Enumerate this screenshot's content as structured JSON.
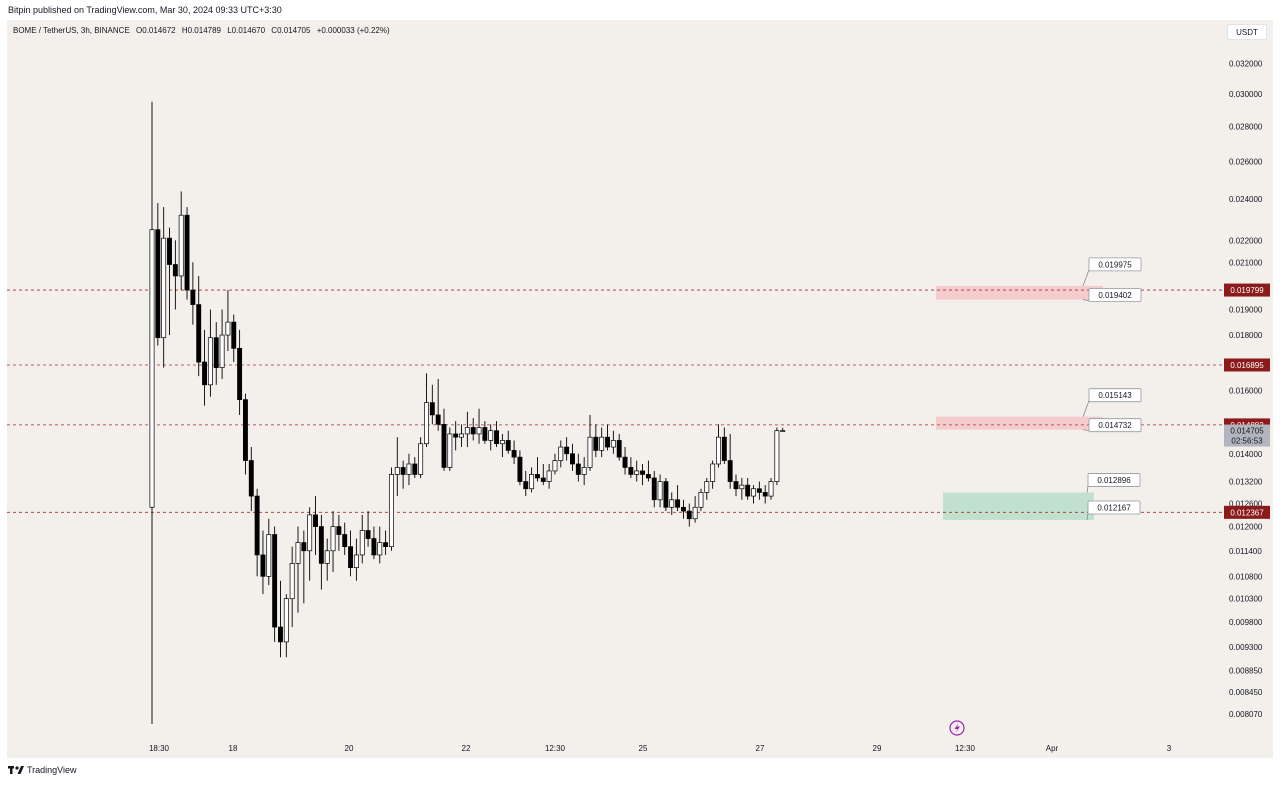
{
  "header": {
    "published": "Bitpin published on TradingView.com, Mar 30, 2024 09:33 UTC+3:30"
  },
  "symbol": {
    "name": "BOME / TetherUS, 3h, BINANCE",
    "open": "O0.014672",
    "high": "H0.014789",
    "low": "L0.014670",
    "close": "C0.014705",
    "change": "+0.000033 (+0.22%)"
  },
  "currency": "USDT",
  "footer": {
    "brand": "TradingView"
  },
  "colors": {
    "background": "#f3f0ec",
    "candle_up": "#ffffff",
    "candle_down": "#000000",
    "level_line": "#b22833",
    "level_badge": "#8b1a1a",
    "resistance_zone": "#f5c6c9",
    "support_zone": "#b7ddc8"
  },
  "chart_data": {
    "type": "candlestick",
    "y_scale": "log",
    "ylim": [
      0.0079,
      0.0325
    ],
    "y_ticks": [
      "0.032000",
      "0.030000",
      "0.028000",
      "0.026000",
      "0.024000",
      "0.022000",
      "0.021000",
      "0.019000",
      "0.018000",
      "0.016000",
      "0.014000",
      "0.013200",
      "0.012600",
      "0.012000",
      "0.011400",
      "0.010800",
      "0.010300",
      "0.009800",
      "0.009300",
      "0.008850",
      "0.008450",
      "0.008070"
    ],
    "x_ticks": [
      "18:30",
      "18",
      "20",
      "22",
      "12:30",
      "25",
      "27",
      "29",
      "12:30",
      "Apr",
      "3"
    ],
    "last_price": {
      "value": "0.014705",
      "countdown": "02:56:53"
    },
    "levels": [
      "0.019799",
      "0.016895",
      "0.014882",
      "0.012367"
    ],
    "zones": [
      {
        "kind": "resistance",
        "top": 0.019975,
        "bottom": 0.019402,
        "labels": [
          "0.019975",
          "0.019402"
        ]
      },
      {
        "kind": "resistance",
        "top": 0.015143,
        "bottom": 0.014732,
        "labels": [
          "0.015143",
          "0.014732"
        ]
      },
      {
        "kind": "support",
        "top": 0.012896,
        "bottom": 0.012167,
        "labels": [
          "0.012896",
          "0.012167"
        ]
      }
    ],
    "candles": [
      [
        0.0125,
        0.0295,
        0.0079,
        0.0225
      ],
      [
        0.0225,
        0.0238,
        0.0176,
        0.0179
      ],
      [
        0.0179,
        0.0236,
        0.0168,
        0.0221
      ],
      [
        0.0221,
        0.0226,
        0.018,
        0.0209
      ],
      [
        0.0209,
        0.022,
        0.019,
        0.0204
      ],
      [
        0.0204,
        0.0244,
        0.0198,
        0.0232
      ],
      [
        0.0232,
        0.0236,
        0.0194,
        0.0198
      ],
      [
        0.0198,
        0.021,
        0.0184,
        0.0192
      ],
      [
        0.0192,
        0.0204,
        0.0165,
        0.017
      ],
      [
        0.017,
        0.0182,
        0.0155,
        0.0162
      ],
      [
        0.0162,
        0.019,
        0.0158,
        0.0179
      ],
      [
        0.0179,
        0.0185,
        0.0162,
        0.0168
      ],
      [
        0.0168,
        0.019,
        0.0164,
        0.018
      ],
      [
        0.018,
        0.0198,
        0.0174,
        0.0185
      ],
      [
        0.0185,
        0.0188,
        0.017,
        0.0175
      ],
      [
        0.0175,
        0.0182,
        0.0152,
        0.0157
      ],
      [
        0.0157,
        0.0159,
        0.0134,
        0.0138
      ],
      [
        0.0138,
        0.0142,
        0.0124,
        0.0128
      ],
      [
        0.0128,
        0.013,
        0.0108,
        0.0113
      ],
      [
        0.0113,
        0.0119,
        0.0104,
        0.0108
      ],
      [
        0.0108,
        0.0122,
        0.0106,
        0.0118
      ],
      [
        0.0118,
        0.012,
        0.0094,
        0.0097
      ],
      [
        0.0097,
        0.0107,
        0.0091,
        0.0094
      ],
      [
        0.0094,
        0.0104,
        0.0091,
        0.0103
      ],
      [
        0.0103,
        0.0115,
        0.0097,
        0.0111
      ],
      [
        0.0111,
        0.012,
        0.01,
        0.0116
      ],
      [
        0.0116,
        0.0119,
        0.0102,
        0.0114
      ],
      [
        0.0114,
        0.0125,
        0.0107,
        0.0123
      ],
      [
        0.0123,
        0.0128,
        0.0113,
        0.012
      ],
      [
        0.012,
        0.0123,
        0.0105,
        0.0111
      ],
      [
        0.0111,
        0.0117,
        0.0107,
        0.0114
      ],
      [
        0.0114,
        0.0124,
        0.0109,
        0.012
      ],
      [
        0.012,
        0.0123,
        0.0114,
        0.0118
      ],
      [
        0.0118,
        0.0121,
        0.0113,
        0.0115
      ],
      [
        0.0115,
        0.0119,
        0.0108,
        0.011
      ],
      [
        0.011,
        0.0117,
        0.0107,
        0.0113
      ],
      [
        0.0113,
        0.0123,
        0.0111,
        0.0119
      ],
      [
        0.0119,
        0.0124,
        0.0115,
        0.0117
      ],
      [
        0.0117,
        0.012,
        0.0112,
        0.0113
      ],
      [
        0.0113,
        0.012,
        0.0111,
        0.0116
      ],
      [
        0.0116,
        0.0119,
        0.0113,
        0.0115
      ],
      [
        0.0115,
        0.0136,
        0.0114,
        0.0134
      ],
      [
        0.0134,
        0.0145,
        0.0128,
        0.0136
      ],
      [
        0.0136,
        0.0138,
        0.013,
        0.0134
      ],
      [
        0.0134,
        0.014,
        0.0131,
        0.0137
      ],
      [
        0.0137,
        0.0139,
        0.0133,
        0.0134
      ],
      [
        0.0134,
        0.0145,
        0.0133,
        0.0143
      ],
      [
        0.0143,
        0.0166,
        0.0142,
        0.0156
      ],
      [
        0.0156,
        0.0162,
        0.0149,
        0.0152
      ],
      [
        0.0152,
        0.0164,
        0.0147,
        0.0149
      ],
      [
        0.0149,
        0.0154,
        0.0135,
        0.0136
      ],
      [
        0.0136,
        0.0148,
        0.0135,
        0.0146
      ],
      [
        0.0146,
        0.015,
        0.0141,
        0.0145
      ],
      [
        0.0145,
        0.0149,
        0.0142,
        0.0146
      ],
      [
        0.0146,
        0.0153,
        0.0142,
        0.0148
      ],
      [
        0.0148,
        0.0151,
        0.0144,
        0.0146
      ],
      [
        0.0146,
        0.0154,
        0.0143,
        0.0148
      ],
      [
        0.0148,
        0.015,
        0.0143,
        0.0144
      ],
      [
        0.0144,
        0.0149,
        0.0141,
        0.0147
      ],
      [
        0.0147,
        0.015,
        0.0142,
        0.0143
      ],
      [
        0.0143,
        0.0146,
        0.0139,
        0.0144
      ],
      [
        0.0144,
        0.0147,
        0.014,
        0.0141
      ],
      [
        0.0141,
        0.0144,
        0.0137,
        0.0139
      ],
      [
        0.0139,
        0.0141,
        0.0131,
        0.0132
      ],
      [
        0.0132,
        0.0135,
        0.0128,
        0.013
      ],
      [
        0.013,
        0.0136,
        0.0129,
        0.0134
      ],
      [
        0.0134,
        0.0139,
        0.0132,
        0.0133
      ],
      [
        0.0133,
        0.0137,
        0.0131,
        0.0132
      ],
      [
        0.0132,
        0.0137,
        0.013,
        0.0135
      ],
      [
        0.0135,
        0.014,
        0.0134,
        0.0138
      ],
      [
        0.0138,
        0.0144,
        0.0136,
        0.0142
      ],
      [
        0.0142,
        0.0145,
        0.0138,
        0.014
      ],
      [
        0.014,
        0.0143,
        0.0135,
        0.0137
      ],
      [
        0.0137,
        0.014,
        0.0132,
        0.0134
      ],
      [
        0.0134,
        0.0139,
        0.0131,
        0.0136
      ],
      [
        0.0136,
        0.0152,
        0.0135,
        0.0145
      ],
      [
        0.0145,
        0.0149,
        0.0139,
        0.0141
      ],
      [
        0.0141,
        0.0148,
        0.0139,
        0.0145
      ],
      [
        0.0145,
        0.0149,
        0.0141,
        0.0142
      ],
      [
        0.0142,
        0.0147,
        0.014,
        0.0144
      ],
      [
        0.0144,
        0.0146,
        0.0138,
        0.0139
      ],
      [
        0.0139,
        0.0142,
        0.0134,
        0.0136
      ],
      [
        0.0136,
        0.0139,
        0.0133,
        0.0134
      ],
      [
        0.0134,
        0.0138,
        0.0132,
        0.0135
      ],
      [
        0.0135,
        0.0137,
        0.0131,
        0.0134
      ],
      [
        0.0134,
        0.0138,
        0.0132,
        0.0133
      ],
      [
        0.0133,
        0.0135,
        0.0125,
        0.0127
      ],
      [
        0.0127,
        0.0134,
        0.0125,
        0.0132
      ],
      [
        0.0132,
        0.0133,
        0.0124,
        0.0125
      ],
      [
        0.0125,
        0.0129,
        0.0123,
        0.0127
      ],
      [
        0.0127,
        0.0131,
        0.0124,
        0.0125
      ],
      [
        0.0125,
        0.0127,
        0.0122,
        0.0124
      ],
      [
        0.0124,
        0.0126,
        0.012,
        0.0122
      ],
      [
        0.0122,
        0.0128,
        0.0121,
        0.0125
      ],
      [
        0.0125,
        0.013,
        0.0124,
        0.0129
      ],
      [
        0.0129,
        0.0133,
        0.0127,
        0.0132
      ],
      [
        0.0132,
        0.0138,
        0.013,
        0.0137
      ],
      [
        0.0137,
        0.0149,
        0.0136,
        0.0145
      ],
      [
        0.0145,
        0.0148,
        0.0137,
        0.0138
      ],
      [
        0.0138,
        0.0146,
        0.013,
        0.0132
      ],
      [
        0.0132,
        0.0134,
        0.0128,
        0.013
      ],
      [
        0.013,
        0.0133,
        0.0127,
        0.0131
      ],
      [
        0.0131,
        0.0133,
        0.0127,
        0.0128
      ],
      [
        0.0128,
        0.0131,
        0.0126,
        0.013
      ],
      [
        0.013,
        0.0132,
        0.0127,
        0.0129
      ],
      [
        0.0129,
        0.0131,
        0.0126,
        0.0128
      ],
      [
        0.0128,
        0.0133,
        0.0127,
        0.0132
      ],
      [
        0.0132,
        0.0148,
        0.0131,
        0.0147
      ],
      [
        0.0147,
        0.01479,
        0.01467,
        0.014705
      ]
    ]
  }
}
